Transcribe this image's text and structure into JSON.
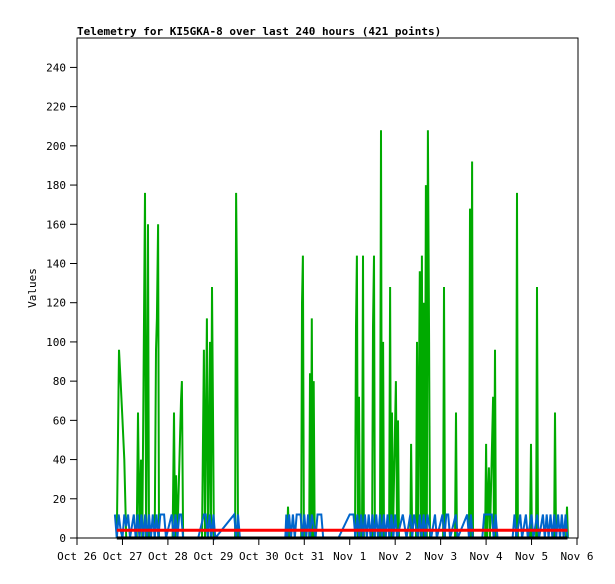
{
  "chart_data": {
    "type": "line",
    "title": "Telemetry for KI5GKA-8 over last 240 hours (421 points)",
    "xlabel": "",
    "ylabel": "Values",
    "xlim_hours": [
      0,
      264
    ],
    "ylim": [
      0,
      255
    ],
    "x_ticks": [
      {
        "hour": 0,
        "label": "Oct 26"
      },
      {
        "hour": 24,
        "label": "Oct 27"
      },
      {
        "hour": 48,
        "label": "Oct 28"
      },
      {
        "hour": 72,
        "label": "Oct 29"
      },
      {
        "hour": 96,
        "label": "Oct 30"
      },
      {
        "hour": 120,
        "label": "Oct 31"
      },
      {
        "hour": 144,
        "label": "Nov 1"
      },
      {
        "hour": 168,
        "label": "Nov 2"
      },
      {
        "hour": 192,
        "label": "Nov 3"
      },
      {
        "hour": 216,
        "label": "Nov 4"
      },
      {
        "hour": 240,
        "label": "Nov 5"
      },
      {
        "hour": 264,
        "label": "Nov 6"
      }
    ],
    "y_ticks": [
      0,
      20,
      40,
      60,
      80,
      100,
      120,
      140,
      160,
      180,
      200,
      220,
      240
    ],
    "grid": false,
    "series": [
      {
        "name": "black",
        "color": "#000000",
        "points": [
          [
            21,
            0
          ],
          [
            259,
            0
          ]
        ]
      },
      {
        "name": "red",
        "color": "#ff0000",
        "points": [
          [
            21,
            4
          ],
          [
            259,
            4
          ]
        ]
      },
      {
        "name": "green",
        "color": "#00aa00",
        "points": [
          [
            21,
            0
          ],
          [
            22.2,
            96
          ],
          [
            23,
            80
          ],
          [
            24,
            60
          ],
          [
            25,
            40
          ],
          [
            26,
            0
          ],
          [
            31.5,
            0
          ],
          [
            32.2,
            64
          ],
          [
            33,
            0
          ],
          [
            33.8,
            40
          ],
          [
            34.5,
            0
          ],
          [
            35.9,
            176
          ],
          [
            36.5,
            0
          ],
          [
            37,
            64
          ],
          [
            37.5,
            160
          ],
          [
            38,
            0
          ],
          [
            41,
            0
          ],
          [
            41.7,
            96
          ],
          [
            42.2,
            112
          ],
          [
            42.8,
            160
          ],
          [
            43.3,
            0
          ],
          [
            50.5,
            0
          ],
          [
            51.2,
            64
          ],
          [
            51.8,
            0
          ],
          [
            52.3,
            32
          ],
          [
            53,
            0
          ],
          [
            54.9,
            70
          ],
          [
            55.4,
            80
          ],
          [
            56,
            0
          ],
          [
            66,
            0
          ],
          [
            67,
            96
          ],
          [
            67.6,
            0
          ],
          [
            68.6,
            112
          ],
          [
            69.2,
            0
          ],
          [
            70.2,
            100
          ],
          [
            70.7,
            0
          ],
          [
            71.3,
            128
          ],
          [
            71.8,
            64
          ],
          [
            72.3,
            0
          ],
          [
            83.5,
            0
          ],
          [
            84,
            176
          ],
          [
            84.5,
            130
          ],
          [
            85,
            0
          ],
          [
            111,
            0
          ],
          [
            111.4,
            16
          ],
          [
            112,
            0
          ],
          [
            118.4,
            0
          ],
          [
            118.8,
            120
          ],
          [
            119.3,
            144
          ],
          [
            119.8,
            0
          ],
          [
            122.6,
            0
          ],
          [
            123,
            84
          ],
          [
            123.5,
            0
          ],
          [
            124,
            112
          ],
          [
            124.5,
            0
          ],
          [
            125,
            80
          ],
          [
            125.5,
            0
          ],
          [
            146.8,
            0
          ],
          [
            147.3,
            108
          ],
          [
            147.8,
            144
          ],
          [
            148.3,
            0
          ],
          [
            148.9,
            72
          ],
          [
            149.4,
            0
          ],
          [
            150.5,
            0
          ],
          [
            151,
            144
          ],
          [
            151.5,
            0
          ],
          [
            155.8,
            0
          ],
          [
            156.3,
            108
          ],
          [
            156.8,
            144
          ],
          [
            157.3,
            0
          ],
          [
            160,
            0
          ],
          [
            160.5,
            208
          ],
          [
            161,
            0
          ],
          [
            161.6,
            100
          ],
          [
            162.1,
            0
          ],
          [
            164.8,
            0
          ],
          [
            165.3,
            128
          ],
          [
            165.8,
            0
          ],
          [
            166.3,
            64
          ],
          [
            166.8,
            0
          ],
          [
            168.4,
            80
          ],
          [
            169,
            0
          ],
          [
            169.5,
            60
          ],
          [
            170,
            0
          ],
          [
            176,
            0
          ],
          [
            176.4,
            48
          ],
          [
            177,
            0
          ],
          [
            179,
            0
          ],
          [
            179.5,
            100
          ],
          [
            180,
            0
          ],
          [
            181,
            136
          ],
          [
            181.5,
            0
          ],
          [
            182.1,
            144
          ],
          [
            182.6,
            0
          ],
          [
            183.1,
            120
          ],
          [
            183.6,
            0
          ],
          [
            184.2,
            180
          ],
          [
            184.7,
            0
          ],
          [
            185.3,
            208
          ],
          [
            185.9,
            100
          ],
          [
            186.4,
            0
          ],
          [
            193.3,
            0
          ],
          [
            193.8,
            128
          ],
          [
            194.3,
            0
          ],
          [
            199.6,
            0
          ],
          [
            200.1,
            64
          ],
          [
            200.6,
            0
          ],
          [
            207,
            0
          ],
          [
            207.5,
            168
          ],
          [
            208,
            0
          ],
          [
            208.6,
            192
          ],
          [
            209.1,
            0
          ],
          [
            215.5,
            0
          ],
          [
            216,
            48
          ],
          [
            216.5,
            0
          ],
          [
            217.5,
            36
          ],
          [
            218,
            0
          ],
          [
            219.7,
            72
          ],
          [
            220.2,
            0
          ],
          [
            220.7,
            96
          ],
          [
            221.2,
            0
          ],
          [
            231.8,
            0
          ],
          [
            232.3,
            176
          ],
          [
            232.8,
            0
          ],
          [
            239.2,
            0
          ],
          [
            239.7,
            48
          ],
          [
            240.2,
            0
          ],
          [
            242.4,
            0
          ],
          [
            242.9,
            128
          ],
          [
            243.4,
            0
          ],
          [
            251.9,
            0
          ],
          [
            252.4,
            64
          ],
          [
            252.9,
            0
          ],
          [
            258.2,
            0
          ],
          [
            258.7,
            16
          ],
          [
            259.2,
            0
          ]
        ]
      },
      {
        "name": "blue",
        "color": "#0066cc",
        "points": [
          [
            20,
            12
          ],
          [
            21,
            0
          ],
          [
            22,
            12
          ],
          [
            23,
            4
          ],
          [
            24,
            0
          ],
          [
            25,
            12
          ],
          [
            26,
            6
          ],
          [
            27,
            12
          ],
          [
            28,
            0
          ],
          [
            30,
            12
          ],
          [
            31,
            0
          ],
          [
            32,
            12
          ],
          [
            33,
            0
          ],
          [
            34,
            12
          ],
          [
            35,
            0
          ],
          [
            36,
            12
          ],
          [
            37,
            0
          ],
          [
            38,
            12
          ],
          [
            39,
            0
          ],
          [
            40,
            12
          ],
          [
            41,
            0
          ],
          [
            42,
            12
          ],
          [
            43,
            0
          ],
          [
            44,
            12
          ],
          [
            46,
            12
          ],
          [
            47,
            0
          ],
          [
            50,
            12
          ],
          [
            51,
            0
          ],
          [
            52,
            12
          ],
          [
            53,
            0
          ],
          [
            54,
            12
          ],
          [
            55,
            12
          ],
          [
            56,
            0
          ],
          [
            64,
            0
          ],
          [
            67,
            12
          ],
          [
            68,
            12
          ],
          [
            69,
            0
          ],
          [
            70,
            12
          ],
          [
            71,
            0
          ],
          [
            72,
            12
          ],
          [
            73,
            0
          ],
          [
            83,
            12
          ],
          [
            84,
            0
          ],
          [
            85,
            12
          ],
          [
            86,
            0
          ],
          [
            110,
            0
          ],
          [
            110.5,
            12
          ],
          [
            111,
            0
          ],
          [
            112,
            12
          ],
          [
            113,
            0
          ],
          [
            114,
            12
          ],
          [
            115,
            0
          ],
          [
            116,
            12
          ],
          [
            118,
            12
          ],
          [
            119,
            0
          ],
          [
            120,
            12
          ],
          [
            121,
            0
          ],
          [
            122,
            12
          ],
          [
            123,
            0
          ],
          [
            124,
            12
          ],
          [
            126,
            0
          ],
          [
            127,
            12
          ],
          [
            129,
            12
          ],
          [
            130,
            0
          ],
          [
            138,
            0
          ],
          [
            144,
            12
          ],
          [
            146,
            12
          ],
          [
            147,
            0
          ],
          [
            148,
            12
          ],
          [
            149,
            0
          ],
          [
            150,
            12
          ],
          [
            151,
            0
          ],
          [
            152,
            12
          ],
          [
            153,
            0
          ],
          [
            154,
            12
          ],
          [
            155,
            0
          ],
          [
            156,
            12
          ],
          [
            157,
            0
          ],
          [
            158,
            12
          ],
          [
            159,
            0
          ],
          [
            160,
            12
          ],
          [
            161,
            0
          ],
          [
            162,
            12
          ],
          [
            163,
            0
          ],
          [
            164,
            12
          ],
          [
            165,
            0
          ],
          [
            166,
            12
          ],
          [
            167,
            0
          ],
          [
            168,
            12
          ],
          [
            169,
            0
          ],
          [
            172,
            12
          ],
          [
            174,
            0
          ],
          [
            176,
            12
          ],
          [
            177,
            0
          ],
          [
            178,
            12
          ],
          [
            180,
            0
          ],
          [
            181,
            12
          ],
          [
            182,
            0
          ],
          [
            183,
            12
          ],
          [
            184,
            0
          ],
          [
            185,
            12
          ],
          [
            187,
            0
          ],
          [
            189,
            12
          ],
          [
            190,
            0
          ],
          [
            193,
            12
          ],
          [
            194,
            0
          ],
          [
            195,
            12
          ],
          [
            196,
            12
          ],
          [
            197,
            0
          ],
          [
            200,
            12
          ],
          [
            201,
            0
          ],
          [
            206,
            12
          ],
          [
            207,
            0
          ],
          [
            208,
            12
          ],
          [
            209,
            0
          ],
          [
            214,
            0
          ],
          [
            215,
            12
          ],
          [
            219,
            12
          ],
          [
            220,
            0
          ],
          [
            221,
            12
          ],
          [
            222,
            0
          ],
          [
            230,
            0
          ],
          [
            231,
            12
          ],
          [
            232,
            0
          ],
          [
            234,
            12
          ],
          [
            235,
            0
          ],
          [
            237,
            12
          ],
          [
            238,
            0
          ],
          [
            240,
            12
          ],
          [
            241,
            0
          ],
          [
            243,
            12
          ],
          [
            244,
            0
          ],
          [
            246,
            12
          ],
          [
            247,
            0
          ],
          [
            248,
            12
          ],
          [
            249,
            0
          ],
          [
            250,
            12
          ],
          [
            251,
            0
          ],
          [
            252,
            12
          ],
          [
            253,
            0
          ],
          [
            254,
            12
          ],
          [
            255,
            0
          ],
          [
            256,
            12
          ],
          [
            257,
            0
          ],
          [
            258,
            12
          ],
          [
            259,
            0
          ]
        ]
      }
    ]
  }
}
